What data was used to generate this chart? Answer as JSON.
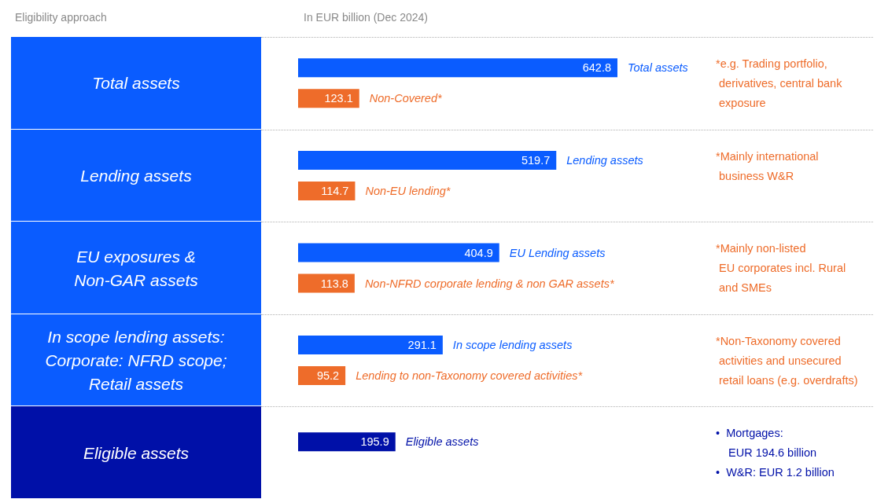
{
  "chart_data": {
    "type": "bar",
    "orientation": "horizontal",
    "title": "Eligibility approach",
    "subtitle": "In EUR billion (Dec 2024)",
    "categories": [
      "Total assets",
      "Lending assets",
      "EU exposures &\nNon-GAR assets",
      "In scope lending assets:\nCorporate: NFRD scope;\nRetail assets",
      "Eligible assets"
    ],
    "series": [
      {
        "name": "Total assets",
        "color": "#0a5cff",
        "values": [
          642.8,
          null,
          null,
          null,
          null
        ]
      },
      {
        "name": "Non-Covered*",
        "color": "#ee6c2a",
        "values": [
          123.1,
          null,
          null,
          null,
          null
        ]
      },
      {
        "name": "Lending assets",
        "color": "#0a5cff",
        "values": [
          null,
          519.7,
          null,
          null,
          null
        ]
      },
      {
        "name": "Non-EU lending*",
        "color": "#ee6c2a",
        "values": [
          null,
          114.7,
          null,
          null,
          null
        ]
      },
      {
        "name": "EU Lending assets",
        "color": "#0a5cff",
        "values": [
          null,
          null,
          404.9,
          null,
          null
        ]
      },
      {
        "name": "Non-NFRD corporate lending & non GAR assets*",
        "color": "#ee6c2a",
        "values": [
          null,
          null,
          113.8,
          null,
          null
        ]
      },
      {
        "name": "In scope lending assets",
        "color": "#0a5cff",
        "values": [
          null,
          null,
          null,
          291.1,
          null
        ]
      },
      {
        "name": "Lending to non-Taxonomy covered activities*",
        "color": "#ee6c2a",
        "values": [
          null,
          null,
          null,
          95.2,
          null
        ]
      },
      {
        "name": "Eligible assets",
        "color": "#0010a8",
        "values": [
          null,
          null,
          null,
          null,
          195.9
        ]
      }
    ],
    "data_labels": true,
    "grid": "y",
    "annotations": [
      "*e.g. Trading portfolio,\n derivatives, central bank\n exposure",
      "*Mainly international\n business W&R",
      "*Mainly non-listed\n EU corporates incl. Rural\n and SMEs",
      "*Non-Taxonomy covered\n activities and unsecured\n retail loans (e.g. overdrafts)",
      "•  Mortgages:\n    EUR 194.6 billion\n•  W&R: EUR 1.2 billion"
    ]
  }
}
